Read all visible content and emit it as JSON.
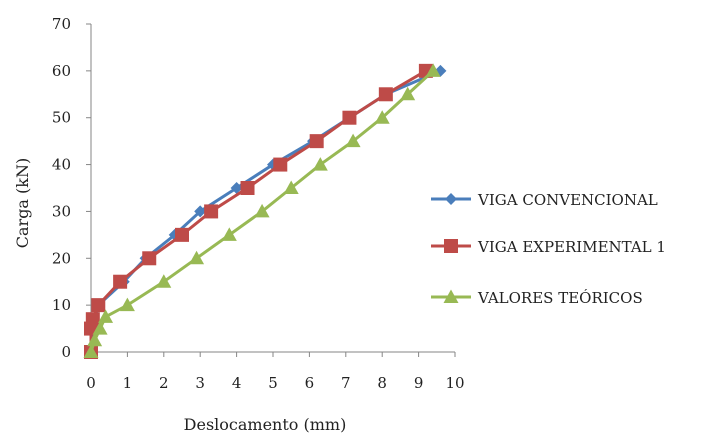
{
  "chart_data": {
    "type": "line",
    "title": "",
    "xlabel": "Deslocamento (mm)",
    "ylabel": "Carga (kN)",
    "xlim": [
      0,
      10
    ],
    "ylim": [
      0,
      70
    ],
    "xticks": [
      "0",
      "1",
      "2",
      "3",
      "4",
      "5",
      "6",
      "7",
      "8",
      "9",
      "10"
    ],
    "yticks": [
      "0",
      "10",
      "20",
      "30",
      "40",
      "50",
      "60",
      "70"
    ],
    "grid": false,
    "legend_position": "right",
    "series": [
      {
        "name": "VIGA CONVENCIONAL",
        "color": "#4a7ebb",
        "marker": "diamond",
        "points": [
          [
            0,
            0
          ],
          [
            0.05,
            5
          ],
          [
            0.2,
            10
          ],
          [
            0.9,
            15
          ],
          [
            1.5,
            20
          ],
          [
            2.3,
            25
          ],
          [
            3.0,
            30
          ],
          [
            4.0,
            35
          ],
          [
            5.0,
            40
          ],
          [
            6.1,
            45
          ],
          [
            7.1,
            50
          ],
          [
            8.1,
            55
          ],
          [
            9.6,
            60
          ]
        ]
      },
      {
        "name": "VIGA EXPERIMENTAL 1",
        "color": "#be4b48",
        "marker": "square",
        "points": [
          [
            0,
            0
          ],
          [
            0,
            5
          ],
          [
            0.05,
            7
          ],
          [
            0.2,
            10
          ],
          [
            0.8,
            15
          ],
          [
            1.6,
            20
          ],
          [
            2.5,
            25
          ],
          [
            3.3,
            30
          ],
          [
            4.3,
            35
          ],
          [
            5.2,
            40
          ],
          [
            6.2,
            45
          ],
          [
            7.1,
            50
          ],
          [
            8.1,
            55
          ],
          [
            9.2,
            60
          ]
        ]
      },
      {
        "name": "VALORES TEÓRICOS",
        "color": "#98b954",
        "marker": "triangle",
        "points": [
          [
            0,
            0
          ],
          [
            0.1,
            2.5
          ],
          [
            0.25,
            5
          ],
          [
            0.4,
            7.5
          ],
          [
            1.0,
            10
          ],
          [
            2.0,
            15
          ],
          [
            2.9,
            20
          ],
          [
            3.8,
            25
          ],
          [
            4.7,
            30
          ],
          [
            5.5,
            35
          ],
          [
            6.3,
            40
          ],
          [
            7.2,
            45
          ],
          [
            8.0,
            50
          ],
          [
            8.7,
            55
          ],
          [
            9.4,
            60
          ]
        ]
      }
    ]
  }
}
